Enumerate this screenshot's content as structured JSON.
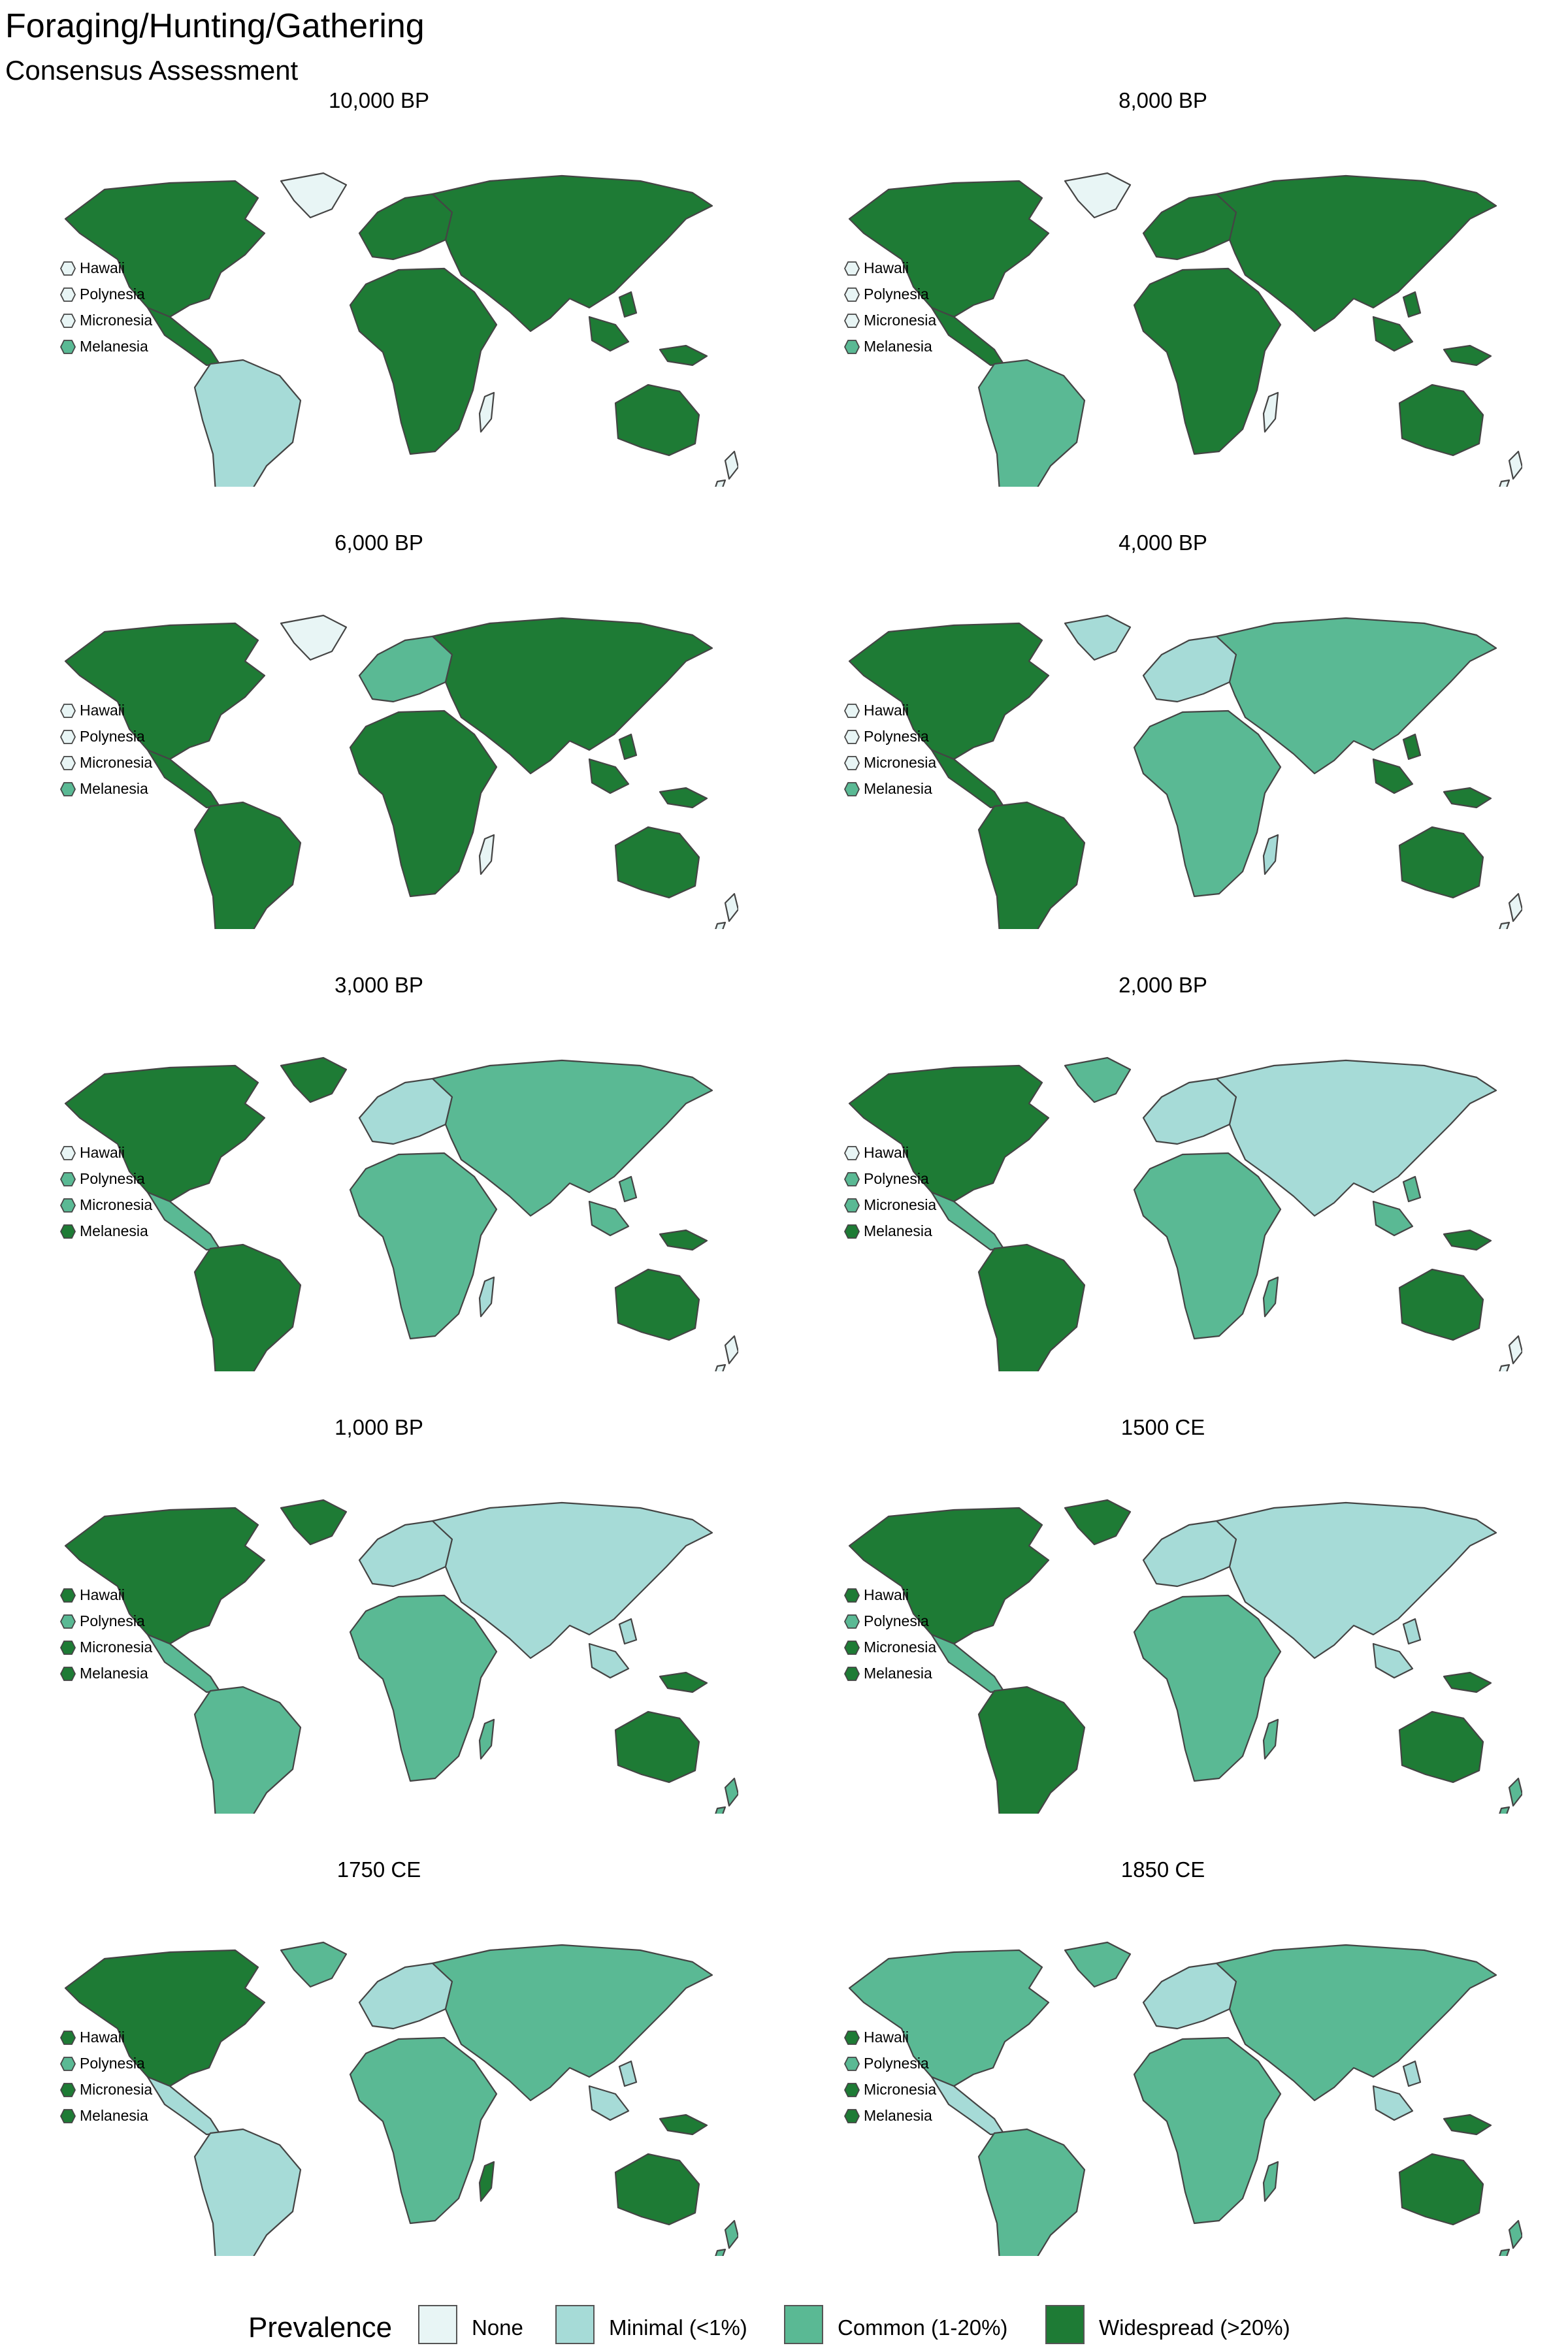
{
  "title": "Foraging/Hunting/Gathering",
  "subtitle": "Consensus Assessment",
  "legend": {
    "title": "Prevalence",
    "items": [
      {
        "key": "none",
        "label": "None",
        "color": "#e8f5f5"
      },
      {
        "key": "minimal",
        "label": "Minimal (<1%)",
        "color": "#a6dbd7"
      },
      {
        "key": "common",
        "label": "Common (1-20%)",
        "color": "#5ab994"
      },
      {
        "key": "widespread",
        "label": "Widespread (>20%)",
        "color": "#1e7b35"
      }
    ]
  },
  "island_labels": [
    "Hawaii",
    "Polynesia",
    "Micronesia",
    "Melanesia"
  ],
  "panels": [
    {
      "label": "10,000 BP",
      "regions": {
        "north_america": "widespread",
        "greenland": "none",
        "central_america": "widespread",
        "south_america": "minimal",
        "europe": "widespread",
        "africa": "widespread",
        "madagascar": "none",
        "asia": "widespread",
        "southeast_asia": "widespread",
        "australia": "widespread",
        "new_guinea": "widespread",
        "new_zealand": "none"
      },
      "islands": {
        "Hawaii": "none",
        "Polynesia": "none",
        "Micronesia": "none",
        "Melanesia": "common"
      }
    },
    {
      "label": "8,000 BP",
      "regions": {
        "north_america": "widespread",
        "greenland": "none",
        "central_america": "widespread",
        "south_america": "common",
        "europe": "widespread",
        "africa": "widespread",
        "madagascar": "none",
        "asia": "widespread",
        "southeast_asia": "widespread",
        "australia": "widespread",
        "new_guinea": "widespread",
        "new_zealand": "none"
      },
      "islands": {
        "Hawaii": "none",
        "Polynesia": "none",
        "Micronesia": "none",
        "Melanesia": "common"
      }
    },
    {
      "label": "6,000 BP",
      "regions": {
        "north_america": "widespread",
        "greenland": "none",
        "central_america": "widespread",
        "south_america": "widespread",
        "europe": "common",
        "africa": "widespread",
        "madagascar": "none",
        "asia": "widespread",
        "southeast_asia": "widespread",
        "australia": "widespread",
        "new_guinea": "widespread",
        "new_zealand": "none"
      },
      "islands": {
        "Hawaii": "none",
        "Polynesia": "none",
        "Micronesia": "none",
        "Melanesia": "common"
      }
    },
    {
      "label": "4,000 BP",
      "regions": {
        "north_america": "widespread",
        "greenland": "minimal",
        "central_america": "widespread",
        "south_america": "widespread",
        "europe": "minimal",
        "africa": "common",
        "madagascar": "minimal",
        "asia": "common",
        "southeast_asia": "widespread",
        "australia": "widespread",
        "new_guinea": "widespread",
        "new_zealand": "none"
      },
      "islands": {
        "Hawaii": "none",
        "Polynesia": "none",
        "Micronesia": "none",
        "Melanesia": "common"
      }
    },
    {
      "label": "3,000 BP",
      "regions": {
        "north_america": "widespread",
        "greenland": "widespread",
        "central_america": "common",
        "south_america": "widespread",
        "europe": "minimal",
        "africa": "common",
        "madagascar": "minimal",
        "asia": "common",
        "southeast_asia": "common",
        "australia": "widespread",
        "new_guinea": "widespread",
        "new_zealand": "none"
      },
      "islands": {
        "Hawaii": "none",
        "Polynesia": "common",
        "Micronesia": "common",
        "Melanesia": "widespread"
      }
    },
    {
      "label": "2,000 BP",
      "regions": {
        "north_america": "widespread",
        "greenland": "common",
        "central_america": "common",
        "south_america": "widespread",
        "europe": "minimal",
        "africa": "common",
        "madagascar": "common",
        "asia": "minimal",
        "southeast_asia": "common",
        "australia": "widespread",
        "new_guinea": "widespread",
        "new_zealand": "none"
      },
      "islands": {
        "Hawaii": "none",
        "Polynesia": "common",
        "Micronesia": "common",
        "Melanesia": "widespread"
      }
    },
    {
      "label": "1,000 BP",
      "regions": {
        "north_america": "widespread",
        "greenland": "widespread",
        "central_america": "common",
        "south_america": "common",
        "europe": "minimal",
        "africa": "common",
        "madagascar": "common",
        "asia": "minimal",
        "southeast_asia": "minimal",
        "australia": "widespread",
        "new_guinea": "widespread",
        "new_zealand": "common"
      },
      "islands": {
        "Hawaii": "widespread",
        "Polynesia": "common",
        "Micronesia": "widespread",
        "Melanesia": "widespread"
      }
    },
    {
      "label": "1500 CE",
      "regions": {
        "north_america": "widespread",
        "greenland": "widespread",
        "central_america": "common",
        "south_america": "widespread",
        "europe": "minimal",
        "africa": "common",
        "madagascar": "common",
        "asia": "minimal",
        "southeast_asia": "minimal",
        "australia": "widespread",
        "new_guinea": "widespread",
        "new_zealand": "common"
      },
      "islands": {
        "Hawaii": "widespread",
        "Polynesia": "common",
        "Micronesia": "widespread",
        "Melanesia": "widespread"
      }
    },
    {
      "label": "1750 CE",
      "regions": {
        "north_america": "widespread",
        "greenland": "common",
        "central_america": "minimal",
        "south_america": "minimal",
        "europe": "minimal",
        "africa": "common",
        "madagascar": "widespread",
        "asia": "common",
        "southeast_asia": "minimal",
        "australia": "widespread",
        "new_guinea": "widespread",
        "new_zealand": "common"
      },
      "islands": {
        "Hawaii": "widespread",
        "Polynesia": "common",
        "Micronesia": "widespread",
        "Melanesia": "widespread"
      }
    },
    {
      "label": "1850 CE",
      "regions": {
        "north_america": "common",
        "greenland": "common",
        "central_america": "minimal",
        "south_america": "common",
        "europe": "minimal",
        "africa": "common",
        "madagascar": "common",
        "asia": "common",
        "southeast_asia": "minimal",
        "australia": "widespread",
        "new_guinea": "widespread",
        "new_zealand": "common"
      },
      "islands": {
        "Hawaii": "widespread",
        "Polynesia": "common",
        "Micronesia": "widespread",
        "Melanesia": "widespread"
      }
    }
  ]
}
